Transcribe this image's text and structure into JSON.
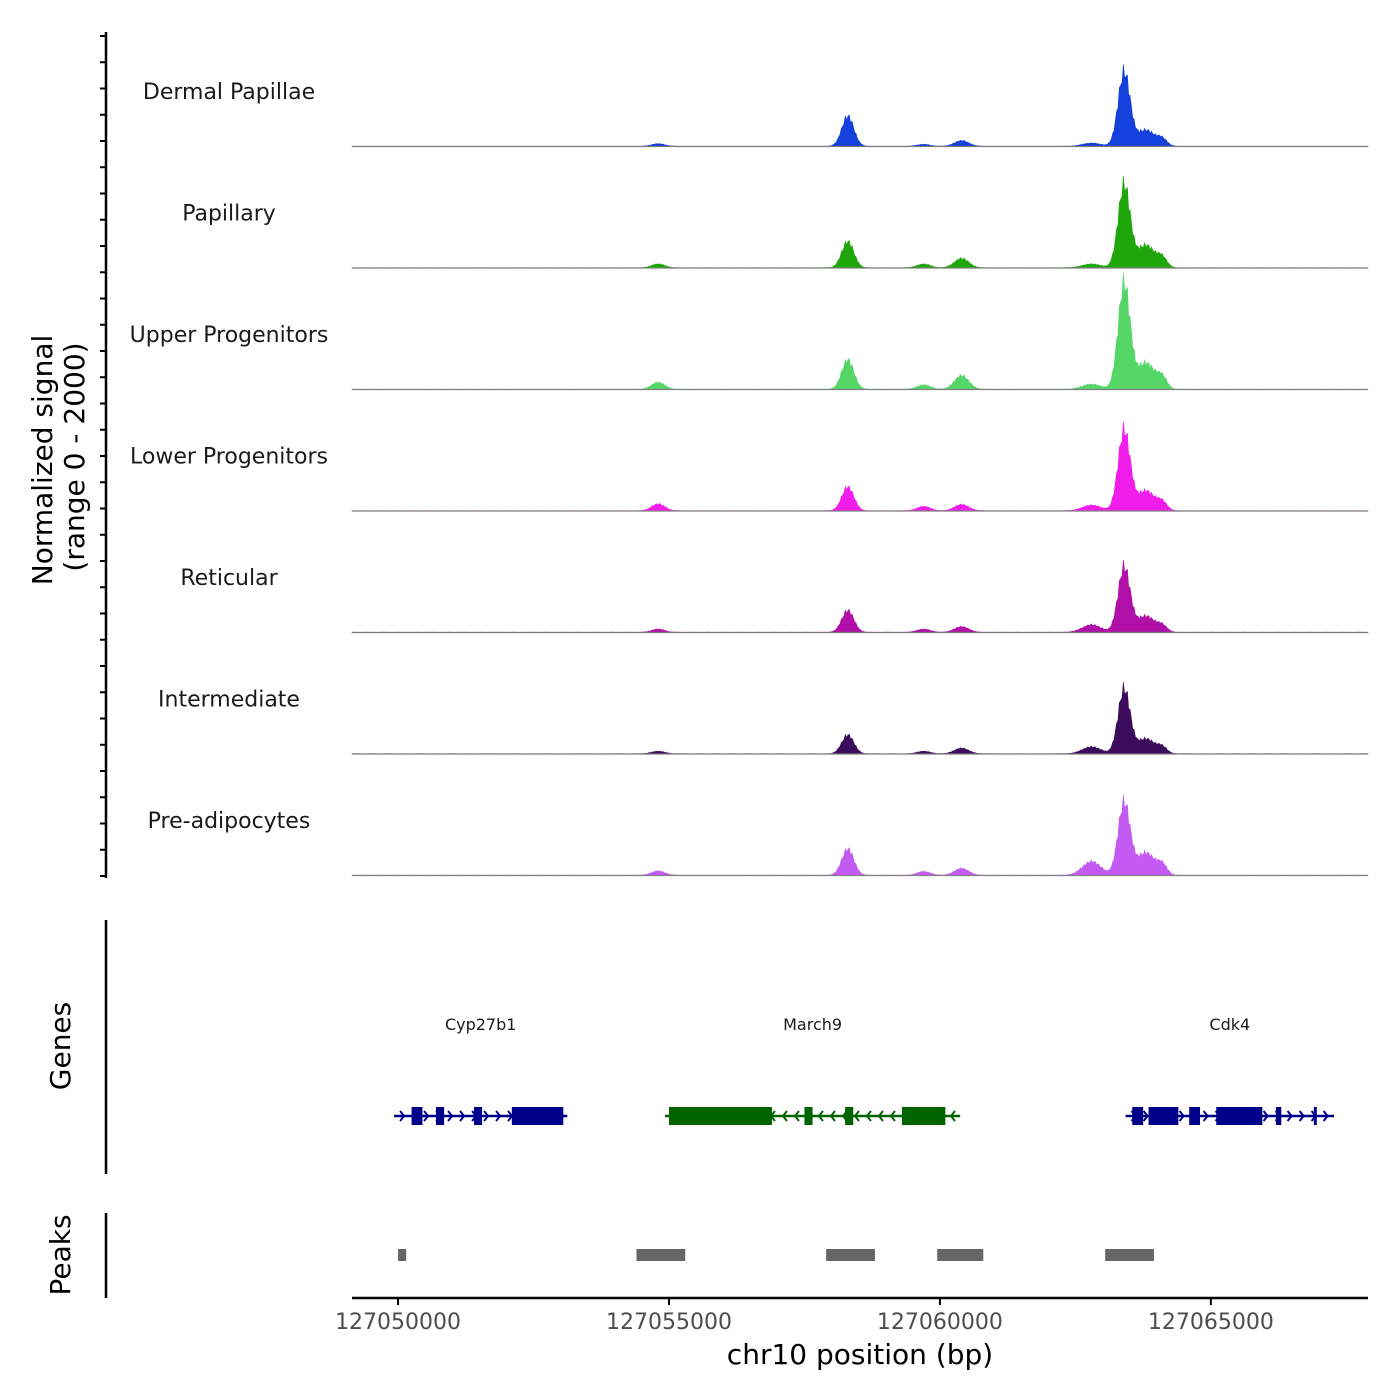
{
  "chart_data": {
    "type": "area",
    "title": "",
    "chromosome": "chr10",
    "xlabel": "chr10 position (bp)",
    "ylabel": "Normalized signal",
    "ylabel_sub": "(range 0 - 2000)",
    "xlim": [
      127049150,
      127067900
    ],
    "ylim": [
      0,
      2000
    ],
    "x_ticks": [
      127050000,
      127055000,
      127060000,
      127065000
    ],
    "x_tick_labels": [
      "127050000",
      "127055000",
      "127060000",
      "127065000"
    ],
    "peak_centers": [
      127054800,
      127058300,
      127059700,
      127060400,
      127062800,
      127063400,
      127063800,
      127064100
    ],
    "series": [
      {
        "name": "Dermal Papillae",
        "color": "#1440DC",
        "values": [
          40,
          480,
          30,
          90,
          50,
          1180,
          260,
          110
        ]
      },
      {
        "name": "Papillary",
        "color": "#1EA60A",
        "values": [
          60,
          420,
          60,
          150,
          60,
          1320,
          360,
          150
        ]
      },
      {
        "name": "Upper Progenitors",
        "color": "#55D667",
        "values": [
          110,
          470,
          70,
          220,
          80,
          1680,
          420,
          180
        ]
      },
      {
        "name": "Lower Progenitors",
        "color": "#F01DEB",
        "values": [
          110,
          380,
          70,
          100,
          90,
          1280,
          320,
          130
        ]
      },
      {
        "name": "Reticular",
        "color": "#B010A8",
        "values": [
          50,
          350,
          50,
          90,
          120,
          1040,
          260,
          100
        ]
      },
      {
        "name": "Intermediate",
        "color": "#3C0B5C",
        "values": [
          40,
          300,
          40,
          90,
          110,
          1030,
          240,
          100
        ]
      },
      {
        "name": "Pre-adipocytes",
        "color": "#C35BF2",
        "values": [
          70,
          420,
          60,
          110,
          220,
          1160,
          360,
          160
        ]
      }
    ],
    "genes_track_label": "Genes",
    "genes": [
      {
        "name": "Cyp27b1",
        "start": 127050000,
        "end": 127053050,
        "strand": "+",
        "color": "#00008B",
        "exons": [
          [
            127050250,
            127050450
          ],
          [
            127050700,
            127050850
          ],
          [
            127051400,
            127051550
          ],
          [
            127052100,
            127053050
          ]
        ]
      },
      {
        "name": "March9",
        "start": 127055000,
        "end": 127060300,
        "strand": "-",
        "color": "#006400",
        "exons": [
          [
            127055000,
            127056900
          ],
          [
            127057500,
            127057650
          ],
          [
            127058250,
            127058400
          ],
          [
            127059300,
            127060100
          ]
        ]
      },
      {
        "name": "Cdk4",
        "start": 127063500,
        "end": 127067200,
        "strand": "+",
        "color": "#00008B",
        "exons": [
          [
            127063550,
            127063750
          ],
          [
            127063850,
            127064400
          ],
          [
            127064600,
            127064800
          ],
          [
            127065100,
            127065950
          ],
          [
            127066200,
            127066300
          ],
          [
            127066900,
            127066950
          ]
        ]
      }
    ],
    "peaks_track_label": "Peaks",
    "peaks": [
      [
        127050000,
        127050150
      ],
      [
        127054400,
        127055300
      ],
      [
        127057900,
        127058800
      ],
      [
        127059950,
        127060800
      ],
      [
        127063050,
        127063950
      ]
    ]
  }
}
